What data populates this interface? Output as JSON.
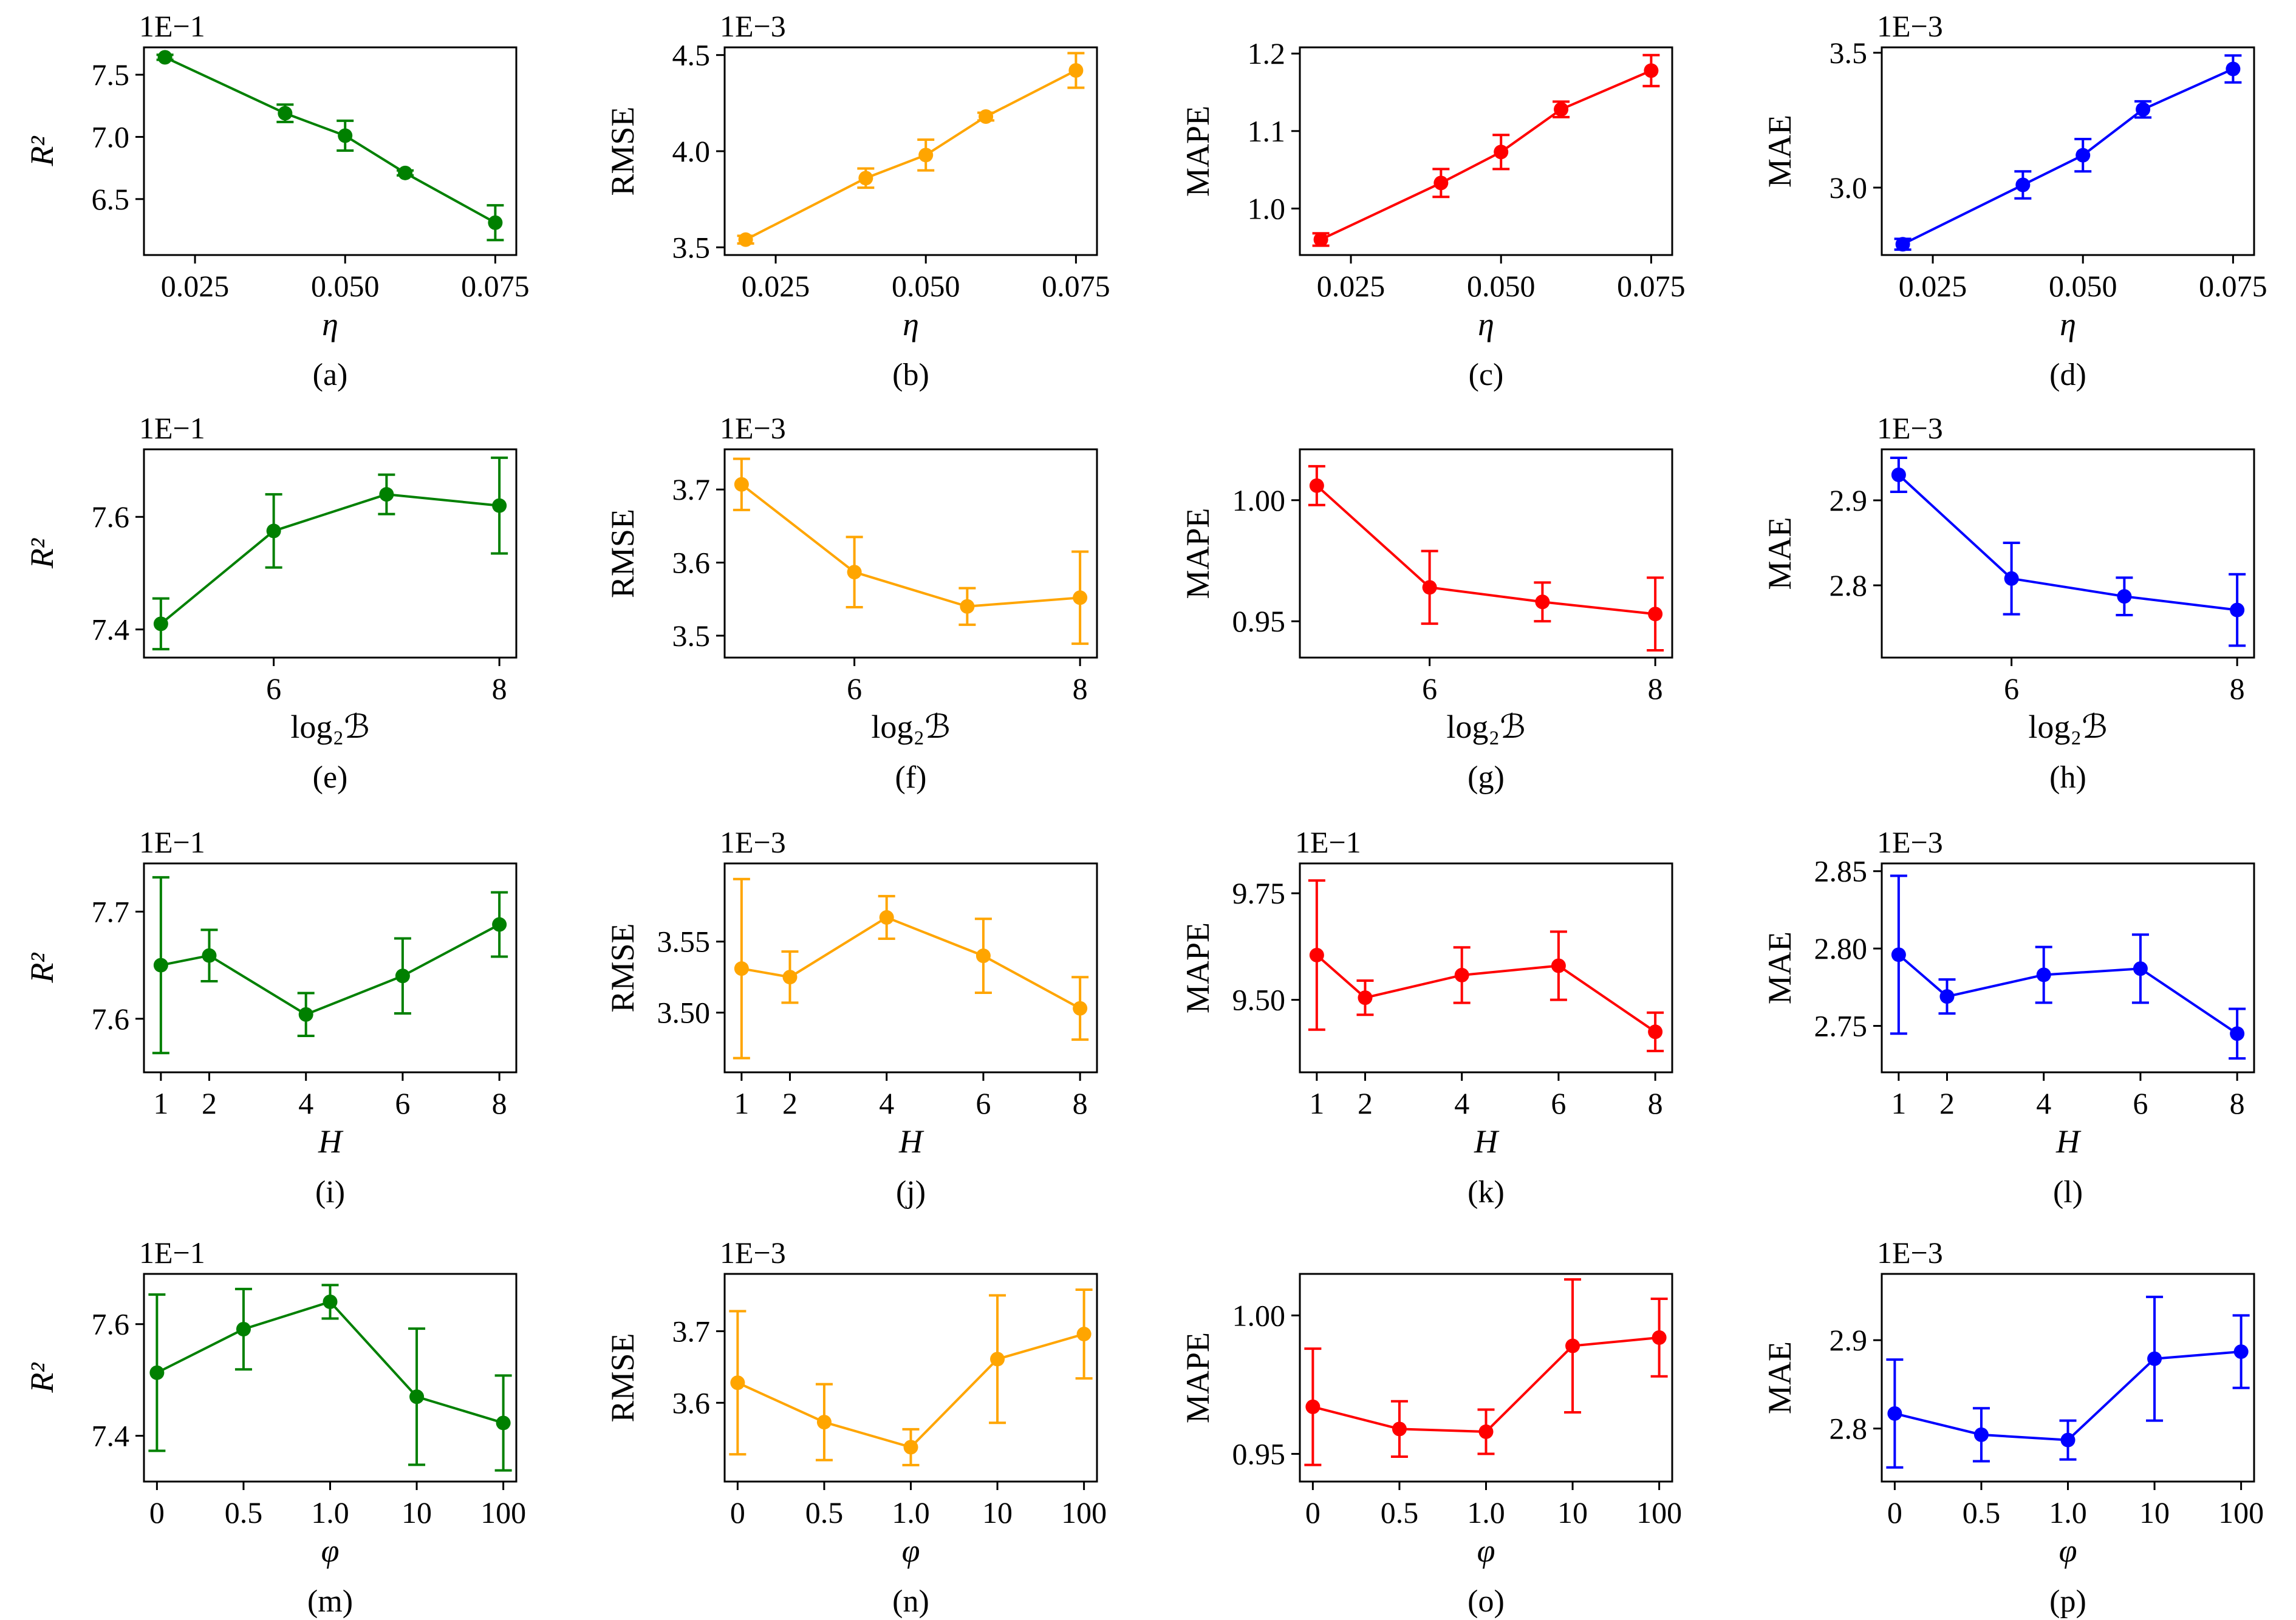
{
  "chart_data": [
    {
      "id": "a",
      "type": "line",
      "caption": "(a)",
      "color": "#008000",
      "multiplier": "1E−1",
      "ylabel": "R²",
      "xlabel": "η",
      "x": [
        0.02,
        0.04,
        0.05,
        0.06,
        0.075
      ],
      "y": [
        7.64,
        7.19,
        7.01,
        6.71,
        6.31
      ],
      "err": [
        0.02,
        0.07,
        0.12,
        0.02,
        0.14
      ],
      "xlim": [
        0.0165,
        0.0785
      ],
      "ylim": [
        6.05,
        7.72
      ],
      "xticks": [
        {
          "v": 0.025,
          "label": "0.025"
        },
        {
          "v": 0.05,
          "label": "0.050"
        },
        {
          "v": 0.075,
          "label": "0.075"
        }
      ],
      "yticks": [
        {
          "v": 6.5,
          "label": "6.5"
        },
        {
          "v": 7.0,
          "label": "7.0"
        },
        {
          "v": 7.5,
          "label": "7.5"
        }
      ]
    },
    {
      "id": "b",
      "type": "line",
      "caption": "(b)",
      "color": "#FFA500",
      "multiplier": "1E−3",
      "ylabel": "RMSE",
      "xlabel": "η",
      "x": [
        0.02,
        0.04,
        0.05,
        0.06,
        0.075
      ],
      "y": [
        3.54,
        3.86,
        3.98,
        4.18,
        4.42
      ],
      "err": [
        0.02,
        0.05,
        0.08,
        0.02,
        0.09
      ],
      "xlim": [
        0.0165,
        0.0785
      ],
      "ylim": [
        3.46,
        4.54
      ],
      "xticks": [
        {
          "v": 0.025,
          "label": "0.025"
        },
        {
          "v": 0.05,
          "label": "0.050"
        },
        {
          "v": 0.075,
          "label": "0.075"
        }
      ],
      "yticks": [
        {
          "v": 3.5,
          "label": "3.5"
        },
        {
          "v": 4.0,
          "label": "4.0"
        },
        {
          "v": 4.5,
          "label": "4.5"
        }
      ]
    },
    {
      "id": "c",
      "type": "line",
      "caption": "(c)",
      "color": "#FF0000",
      "multiplier": "",
      "ylabel": "MAPE",
      "xlabel": "η",
      "x": [
        0.02,
        0.04,
        0.05,
        0.06,
        0.075
      ],
      "y": [
        0.96,
        1.033,
        1.073,
        1.128,
        1.178
      ],
      "err": [
        0.008,
        0.018,
        0.022,
        0.01,
        0.02
      ],
      "xlim": [
        0.0165,
        0.0785
      ],
      "ylim": [
        0.94,
        1.208
      ],
      "xticks": [
        {
          "v": 0.025,
          "label": "0.025"
        },
        {
          "v": 0.05,
          "label": "0.050"
        },
        {
          "v": 0.075,
          "label": "0.075"
        }
      ],
      "yticks": [
        {
          "v": 1.0,
          "label": "1.0"
        },
        {
          "v": 1.1,
          "label": "1.1"
        },
        {
          "v": 1.2,
          "label": "1.2"
        }
      ]
    },
    {
      "id": "d",
      "type": "line",
      "caption": "(d)",
      "color": "#0000FF",
      "multiplier": "1E−3",
      "ylabel": "MAE",
      "xlabel": "η",
      "x": [
        0.02,
        0.04,
        0.05,
        0.06,
        0.075
      ],
      "y": [
        2.79,
        3.01,
        3.12,
        3.29,
        3.44
      ],
      "err": [
        0.02,
        0.05,
        0.06,
        0.03,
        0.05
      ],
      "xlim": [
        0.0165,
        0.0785
      ],
      "ylim": [
        2.75,
        3.52
      ],
      "xticks": [
        {
          "v": 0.025,
          "label": "0.025"
        },
        {
          "v": 0.05,
          "label": "0.050"
        },
        {
          "v": 0.075,
          "label": "0.075"
        }
      ],
      "yticks": [
        {
          "v": 3.0,
          "label": "3.0"
        },
        {
          "v": 3.5,
          "label": "3.5"
        }
      ]
    },
    {
      "id": "e",
      "type": "line",
      "caption": "(e)",
      "color": "#008000",
      "multiplier": "1E−1",
      "ylabel": "R²",
      "xlabel": "log₂ℬ",
      "x": [
        5,
        6,
        7,
        8
      ],
      "y": [
        7.41,
        7.575,
        7.64,
        7.62
      ],
      "err": [
        0.045,
        0.065,
        0.035,
        0.085
      ],
      "xlim": [
        4.85,
        8.15
      ],
      "ylim": [
        7.35,
        7.72
      ],
      "xticks": [
        {
          "v": 6,
          "label": "6"
        },
        {
          "v": 8,
          "label": "8"
        }
      ],
      "yticks": [
        {
          "v": 7.4,
          "label": "7.4"
        },
        {
          "v": 7.6,
          "label": "7.6"
        }
      ]
    },
    {
      "id": "f",
      "type": "line",
      "caption": "(f)",
      "color": "#FFA500",
      "multiplier": "1E−3",
      "ylabel": "RMSE",
      "xlabel": "log₂ℬ",
      "x": [
        5,
        6,
        7,
        8
      ],
      "y": [
        3.707,
        3.587,
        3.54,
        3.552
      ],
      "err": [
        0.035,
        0.048,
        0.025,
        0.063
      ],
      "xlim": [
        4.85,
        8.15
      ],
      "ylim": [
        3.47,
        3.755
      ],
      "xticks": [
        {
          "v": 6,
          "label": "6"
        },
        {
          "v": 8,
          "label": "8"
        }
      ],
      "yticks": [
        {
          "v": 3.5,
          "label": "3.5"
        },
        {
          "v": 3.6,
          "label": "3.6"
        },
        {
          "v": 3.7,
          "label": "3.7"
        }
      ]
    },
    {
      "id": "g",
      "type": "line",
      "caption": "(g)",
      "color": "#FF0000",
      "multiplier": "",
      "ylabel": "MAPE",
      "xlabel": "log₂ℬ",
      "x": [
        5,
        6,
        7,
        8
      ],
      "y": [
        1.006,
        0.964,
        0.958,
        0.953
      ],
      "err": [
        0.008,
        0.015,
        0.008,
        0.015
      ],
      "xlim": [
        4.85,
        8.15
      ],
      "ylim": [
        0.935,
        1.021
      ],
      "xticks": [
        {
          "v": 6,
          "label": "6"
        },
        {
          "v": 8,
          "label": "8"
        }
      ],
      "yticks": [
        {
          "v": 0.95,
          "label": "0.95"
        },
        {
          "v": 1.0,
          "label": "1.00"
        }
      ]
    },
    {
      "id": "h",
      "type": "line",
      "caption": "(h)",
      "color": "#0000FF",
      "multiplier": "1E−3",
      "ylabel": "MAE",
      "xlabel": "log₂ℬ",
      "x": [
        5,
        6,
        7,
        8
      ],
      "y": [
        2.93,
        2.808,
        2.787,
        2.771
      ],
      "err": [
        0.02,
        0.042,
        0.022,
        0.042
      ],
      "xlim": [
        4.85,
        8.15
      ],
      "ylim": [
        2.715,
        2.96
      ],
      "xticks": [
        {
          "v": 6,
          "label": "6"
        },
        {
          "v": 8,
          "label": "8"
        }
      ],
      "yticks": [
        {
          "v": 2.8,
          "label": "2.8"
        },
        {
          "v": 2.9,
          "label": "2.9"
        }
      ]
    },
    {
      "id": "i",
      "type": "line",
      "caption": "(i)",
      "color": "#008000",
      "multiplier": "1E−1",
      "ylabel": "R²",
      "xlabel": "H",
      "x": [
        1,
        2,
        4,
        6,
        8
      ],
      "y": [
        7.65,
        7.659,
        7.604,
        7.64,
        7.688
      ],
      "err": [
        0.082,
        0.024,
        0.02,
        0.035,
        0.03
      ],
      "xlim": [
        0.65,
        8.35
      ],
      "ylim": [
        7.55,
        7.745
      ],
      "xticks": [
        {
          "v": 1,
          "label": "1"
        },
        {
          "v": 2,
          "label": "2"
        },
        {
          "v": 4,
          "label": "4"
        },
        {
          "v": 6,
          "label": "6"
        },
        {
          "v": 8,
          "label": "8"
        }
      ],
      "yticks": [
        {
          "v": 7.6,
          "label": "7.6"
        },
        {
          "v": 7.7,
          "label": "7.7"
        }
      ]
    },
    {
      "id": "j",
      "type": "line",
      "caption": "(j)",
      "color": "#FFA500",
      "multiplier": "1E−3",
      "ylabel": "RMSE",
      "xlabel": "H",
      "x": [
        1,
        2,
        4,
        6,
        8
      ],
      "y": [
        3.531,
        3.525,
        3.567,
        3.54,
        3.503
      ],
      "err": [
        0.063,
        0.018,
        0.015,
        0.026,
        0.022
      ],
      "xlim": [
        0.65,
        8.35
      ],
      "ylim": [
        3.458,
        3.605
      ],
      "xticks": [
        {
          "v": 1,
          "label": "1"
        },
        {
          "v": 2,
          "label": "2"
        },
        {
          "v": 4,
          "label": "4"
        },
        {
          "v": 6,
          "label": "6"
        },
        {
          "v": 8,
          "label": "8"
        }
      ],
      "yticks": [
        {
          "v": 3.5,
          "label": "3.50"
        },
        {
          "v": 3.55,
          "label": "3.55"
        }
      ]
    },
    {
      "id": "k",
      "type": "line",
      "caption": "(k)",
      "color": "#FF0000",
      "multiplier": "1E−1",
      "ylabel": "MAPE",
      "xlabel": "H",
      "x": [
        1,
        2,
        4,
        6,
        8
      ],
      "y": [
        9.605,
        9.505,
        9.558,
        9.58,
        9.425
      ],
      "err": [
        0.175,
        0.04,
        0.065,
        0.08,
        0.045
      ],
      "xlim": [
        0.65,
        8.35
      ],
      "ylim": [
        9.33,
        9.82
      ],
      "xticks": [
        {
          "v": 1,
          "label": "1"
        },
        {
          "v": 2,
          "label": "2"
        },
        {
          "v": 4,
          "label": "4"
        },
        {
          "v": 6,
          "label": "6"
        },
        {
          "v": 8,
          "label": "8"
        }
      ],
      "yticks": [
        {
          "v": 9.5,
          "label": "9.50"
        },
        {
          "v": 9.75,
          "label": "9.75"
        }
      ]
    },
    {
      "id": "l",
      "type": "line",
      "caption": "(l)",
      "color": "#0000FF",
      "multiplier": "1E−3",
      "ylabel": "MAE",
      "xlabel": "H",
      "x": [
        1,
        2,
        4,
        6,
        8
      ],
      "y": [
        2.796,
        2.769,
        2.783,
        2.787,
        2.745
      ],
      "err": [
        0.051,
        0.011,
        0.018,
        0.022,
        0.016
      ],
      "xlim": [
        0.65,
        8.35
      ],
      "ylim": [
        2.72,
        2.855
      ],
      "xticks": [
        {
          "v": 1,
          "label": "1"
        },
        {
          "v": 2,
          "label": "2"
        },
        {
          "v": 4,
          "label": "4"
        },
        {
          "v": 6,
          "label": "6"
        },
        {
          "v": 8,
          "label": "8"
        }
      ],
      "yticks": [
        {
          "v": 2.75,
          "label": "2.75"
        },
        {
          "v": 2.8,
          "label": "2.80"
        },
        {
          "v": 2.85,
          "label": "2.85"
        }
      ]
    },
    {
      "id": "m",
      "type": "line",
      "caption": "(m)",
      "color": "#008000",
      "multiplier": "1E−1",
      "ylabel": "R²",
      "xlabel": "φ",
      "x": [
        0,
        1,
        2,
        3,
        4
      ],
      "categories": [
        "0",
        "0.5",
        "1.0",
        "10",
        "100"
      ],
      "y": [
        7.513,
        7.591,
        7.64,
        7.47,
        7.423
      ],
      "err": [
        0.14,
        0.072,
        0.03,
        0.122,
        0.085
      ],
      "xlim": [
        -0.15,
        4.15
      ],
      "ylim": [
        7.318,
        7.69
      ],
      "xticks": [
        {
          "v": 0,
          "label": "0"
        },
        {
          "v": 1,
          "label": "0.5"
        },
        {
          "v": 2,
          "label": "1.0"
        },
        {
          "v": 3,
          "label": "10"
        },
        {
          "v": 4,
          "label": "100"
        }
      ],
      "yticks": [
        {
          "v": 7.4,
          "label": "7.4"
        },
        {
          "v": 7.6,
          "label": "7.6"
        }
      ]
    },
    {
      "id": "n",
      "type": "line",
      "caption": "(n)",
      "color": "#FFA500",
      "multiplier": "1E−3",
      "ylabel": "RMSE",
      "xlabel": "φ",
      "x": [
        0,
        1,
        2,
        3,
        4
      ],
      "categories": [
        "0",
        "0.5",
        "1.0",
        "10",
        "100"
      ],
      "y": [
        3.628,
        3.573,
        3.538,
        3.661,
        3.696
      ],
      "err": [
        0.1,
        0.053,
        0.025,
        0.089,
        0.062
      ],
      "xlim": [
        -0.15,
        4.15
      ],
      "ylim": [
        3.49,
        3.78
      ],
      "xticks": [
        {
          "v": 0,
          "label": "0"
        },
        {
          "v": 1,
          "label": "0.5"
        },
        {
          "v": 2,
          "label": "1.0"
        },
        {
          "v": 3,
          "label": "10"
        },
        {
          "v": 4,
          "label": "100"
        }
      ],
      "yticks": [
        {
          "v": 3.6,
          "label": "3.6"
        },
        {
          "v": 3.7,
          "label": "3.7"
        }
      ]
    },
    {
      "id": "o",
      "type": "line",
      "caption": "(o)",
      "color": "#FF0000",
      "multiplier": "",
      "ylabel": "MAPE",
      "xlabel": "φ",
      "x": [
        0,
        1,
        2,
        3,
        4
      ],
      "categories": [
        "0",
        "0.5",
        "1.0",
        "10",
        "100"
      ],
      "y": [
        0.967,
        0.959,
        0.958,
        0.989,
        0.992
      ],
      "err": [
        0.021,
        0.01,
        0.008,
        0.024,
        0.014
      ],
      "xlim": [
        -0.15,
        4.15
      ],
      "ylim": [
        0.94,
        1.015
      ],
      "xticks": [
        {
          "v": 0,
          "label": "0"
        },
        {
          "v": 1,
          "label": "0.5"
        },
        {
          "v": 2,
          "label": "1.0"
        },
        {
          "v": 3,
          "label": "10"
        },
        {
          "v": 4,
          "label": "100"
        }
      ],
      "yticks": [
        {
          "v": 0.95,
          "label": "0.95"
        },
        {
          "v": 1.0,
          "label": "1.00"
        }
      ]
    },
    {
      "id": "p",
      "type": "line",
      "caption": "(p)",
      "color": "#0000FF",
      "multiplier": "1E−3",
      "ylabel": "MAE",
      "xlabel": "φ",
      "x": [
        0,
        1,
        2,
        3,
        4
      ],
      "categories": [
        "0",
        "0.5",
        "1.0",
        "10",
        "100"
      ],
      "y": [
        2.817,
        2.793,
        2.787,
        2.879,
        2.887
      ],
      "err": [
        0.061,
        0.03,
        0.022,
        0.07,
        0.041
      ],
      "xlim": [
        -0.15,
        4.15
      ],
      "ylim": [
        2.74,
        2.975
      ],
      "xticks": [
        {
          "v": 0,
          "label": "0"
        },
        {
          "v": 1,
          "label": "0.5"
        },
        {
          "v": 2,
          "label": "1.0"
        },
        {
          "v": 3,
          "label": "10"
        },
        {
          "v": 4,
          "label": "100"
        }
      ],
      "yticks": [
        {
          "v": 2.8,
          "label": "2.8"
        },
        {
          "v": 2.9,
          "label": "2.9"
        }
      ]
    }
  ]
}
